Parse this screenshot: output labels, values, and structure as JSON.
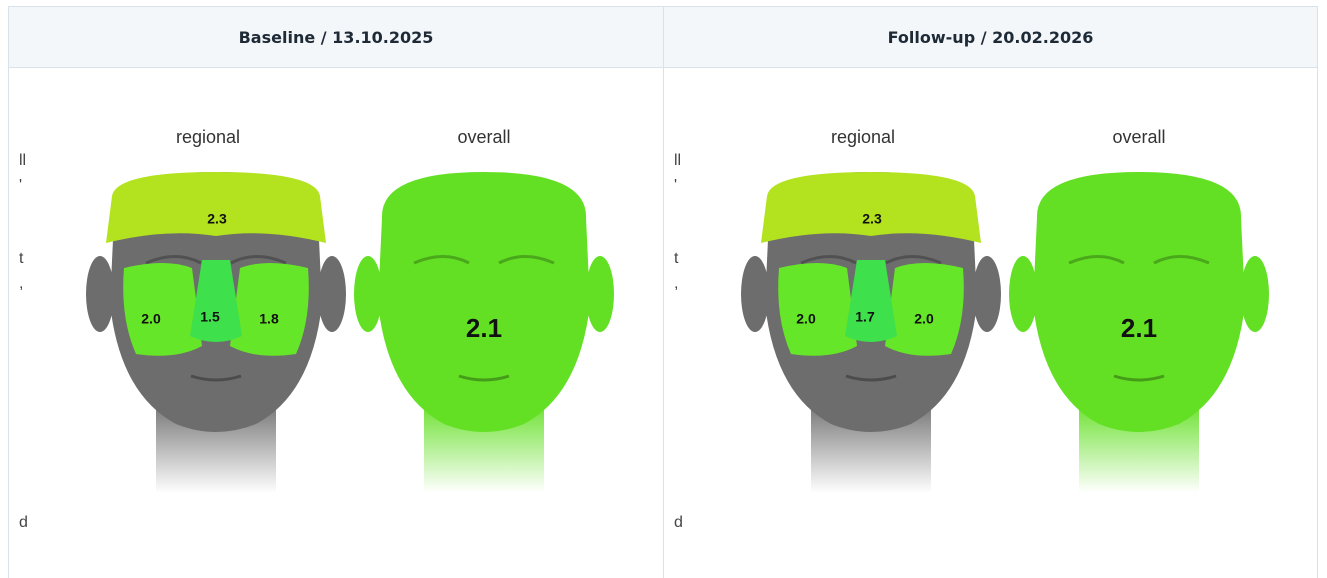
{
  "columns": [
    {
      "header": "Baseline / 13.10.2025",
      "regional_label": "regional",
      "overall_label": "overall",
      "fragments": [
        "ll",
        "'",
        "t",
        ",",
        "d"
      ],
      "regions": {
        "forehead": "2.3",
        "left_cheek": "2.0",
        "nose": "1.5",
        "right_cheek": "1.8"
      },
      "overall": "2.1"
    },
    {
      "header": "Follow-up / 20.02.2026",
      "regional_label": "regional",
      "overall_label": "overall",
      "fragments": [
        "ll",
        "'",
        "t",
        ",",
        "d"
      ],
      "regions": {
        "forehead": "2.3",
        "left_cheek": "2.0",
        "nose": "1.7",
        "right_cheek": "2.0"
      },
      "overall": "2.1"
    }
  ]
}
